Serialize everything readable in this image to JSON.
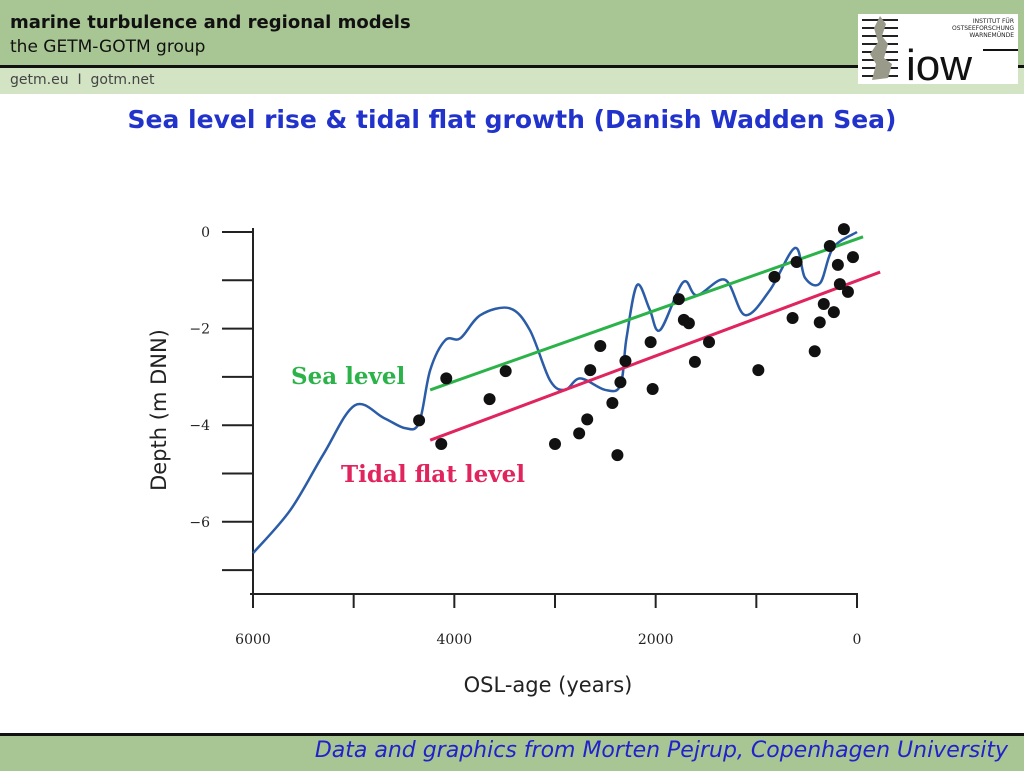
{
  "header": {
    "title": "marine turbulence and regional models",
    "subtitle": "the GETM-GOTM group",
    "links": "getm.eu  I  gotm.net"
  },
  "logo": {
    "text": "iow",
    "institute_lines": [
      "INSTITUT FÜR",
      "OSTSEEFORSCHUNG",
      "WARNEMÜNDE"
    ]
  },
  "slide_title": "Sea level rise & tidal flat growth (Danish Wadden Sea)",
  "footer": "Data and graphics from Morten Pejrup, Copenhagen University",
  "colors": {
    "header": "#a8c594",
    "title": "#2233cc",
    "sea_level": "#2bb34a",
    "tidal_flat": "#e0245e",
    "curve": "#2b5ca8",
    "points": "#111111"
  },
  "chart_data": {
    "type": "scatter",
    "xlabel": "OSL-age (years)",
    "ylabel": "Depth (m DNN)",
    "xlim": [
      6000,
      0
    ],
    "ylim": [
      -7.5,
      0
    ],
    "xticks": [
      6000,
      4000,
      2000,
      0
    ],
    "yticks": [
      0,
      -2,
      -4,
      -6
    ],
    "grid": false,
    "annotations": [
      {
        "text": "Sea level",
        "color": "#2bb34a"
      },
      {
        "text": "Tidal flat level",
        "color": "#e0245e"
      }
    ],
    "points": [
      [
        4350,
        -3.9
      ],
      [
        4130,
        -4.39
      ],
      [
        4080,
        -3.03
      ],
      [
        3650,
        -3.46
      ],
      [
        3490,
        -2.88
      ],
      [
        3000,
        -4.39
      ],
      [
        2760,
        -4.17
      ],
      [
        2680,
        -3.88
      ],
      [
        2650,
        -2.86
      ],
      [
        2550,
        -2.36
      ],
      [
        2430,
        -3.54
      ],
      [
        2380,
        -4.62
      ],
      [
        2350,
        -3.11
      ],
      [
        2300,
        -2.67
      ],
      [
        2050,
        -2.28
      ],
      [
        2030,
        -3.25
      ],
      [
        1770,
        -1.39
      ],
      [
        1720,
        -1.82
      ],
      [
        1670,
        -1.89
      ],
      [
        1610,
        -2.69
      ],
      [
        1470,
        -2.28
      ],
      [
        980,
        -2.86
      ],
      [
        820,
        -0.93
      ],
      [
        640,
        -1.78
      ],
      [
        600,
        -0.62
      ],
      [
        420,
        -2.47
      ],
      [
        370,
        -1.87
      ],
      [
        330,
        -1.49
      ],
      [
        270,
        -0.29
      ],
      [
        230,
        -1.66
      ],
      [
        190,
        -0.68
      ],
      [
        170,
        -1.08
      ],
      [
        130,
        0.06
      ],
      [
        90,
        -1.24
      ],
      [
        40,
        -0.52
      ]
    ],
    "sea_level_line": [
      [
        4240,
        -3.27
      ],
      [
        -60,
        -0.1
      ]
    ],
    "tidal_flat_line": [
      [
        4240,
        -4.31
      ],
      [
        -230,
        -0.83
      ]
    ],
    "curve": [
      [
        6000,
        -6.65
      ],
      [
        5630,
        -5.76
      ],
      [
        5300,
        -4.6
      ],
      [
        4990,
        -3.59
      ],
      [
        4700,
        -3.85
      ],
      [
        4490,
        -4.06
      ],
      [
        4350,
        -3.95
      ],
      [
        4240,
        -2.86
      ],
      [
        4090,
        -2.24
      ],
      [
        3940,
        -2.2
      ],
      [
        3740,
        -1.72
      ],
      [
        3450,
        -1.58
      ],
      [
        3250,
        -2.03
      ],
      [
        3050,
        -3.07
      ],
      [
        2900,
        -3.27
      ],
      [
        2750,
        -3.03
      ],
      [
        2500,
        -3.27
      ],
      [
        2350,
        -3.17
      ],
      [
        2290,
        -2.2
      ],
      [
        2185,
        -1.1
      ],
      [
        2060,
        -1.6
      ],
      [
        1956,
        -2.03
      ],
      [
        1728,
        -1.04
      ],
      [
        1589,
        -1.31
      ],
      [
        1311,
        -0.99
      ],
      [
        1112,
        -1.72
      ],
      [
        864,
        -1.2
      ],
      [
        616,
        -0.33
      ],
      [
        516,
        -0.95
      ],
      [
        367,
        -1.06
      ],
      [
        238,
        -0.33
      ],
      [
        0,
        0
      ]
    ]
  }
}
